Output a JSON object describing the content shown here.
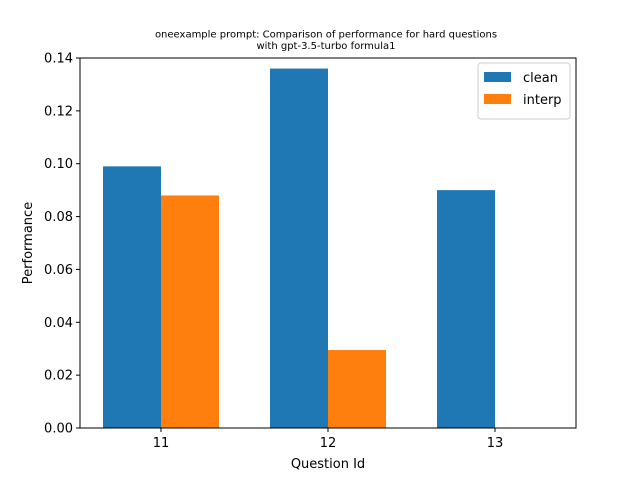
{
  "chart_data": {
    "type": "bar",
    "title_lines": [
      "oneexample prompt: Comparison of performance for hard questions",
      "with gpt-3.5-turbo formula1"
    ],
    "xlabel": "Question Id",
    "ylabel": "Performance",
    "categories": [
      "11",
      "12",
      "13"
    ],
    "series": [
      {
        "name": "clean",
        "values": [
          0.099,
          0.136,
          0.09
        ],
        "color": "#1f77b4"
      },
      {
        "name": "interp",
        "values": [
          0.088,
          0.0295,
          0.0
        ],
        "color": "#ff7f0e"
      }
    ],
    "ylim": [
      0,
      0.14
    ],
    "yticks": [
      0.0,
      0.02,
      0.04,
      0.06,
      0.08,
      0.1,
      0.12,
      0.14
    ],
    "ytick_labels": [
      "0.00",
      "0.02",
      "0.04",
      "0.06",
      "0.08",
      "0.10",
      "0.12",
      "0.14"
    ],
    "grid": false,
    "legend_position": "top-right"
  }
}
